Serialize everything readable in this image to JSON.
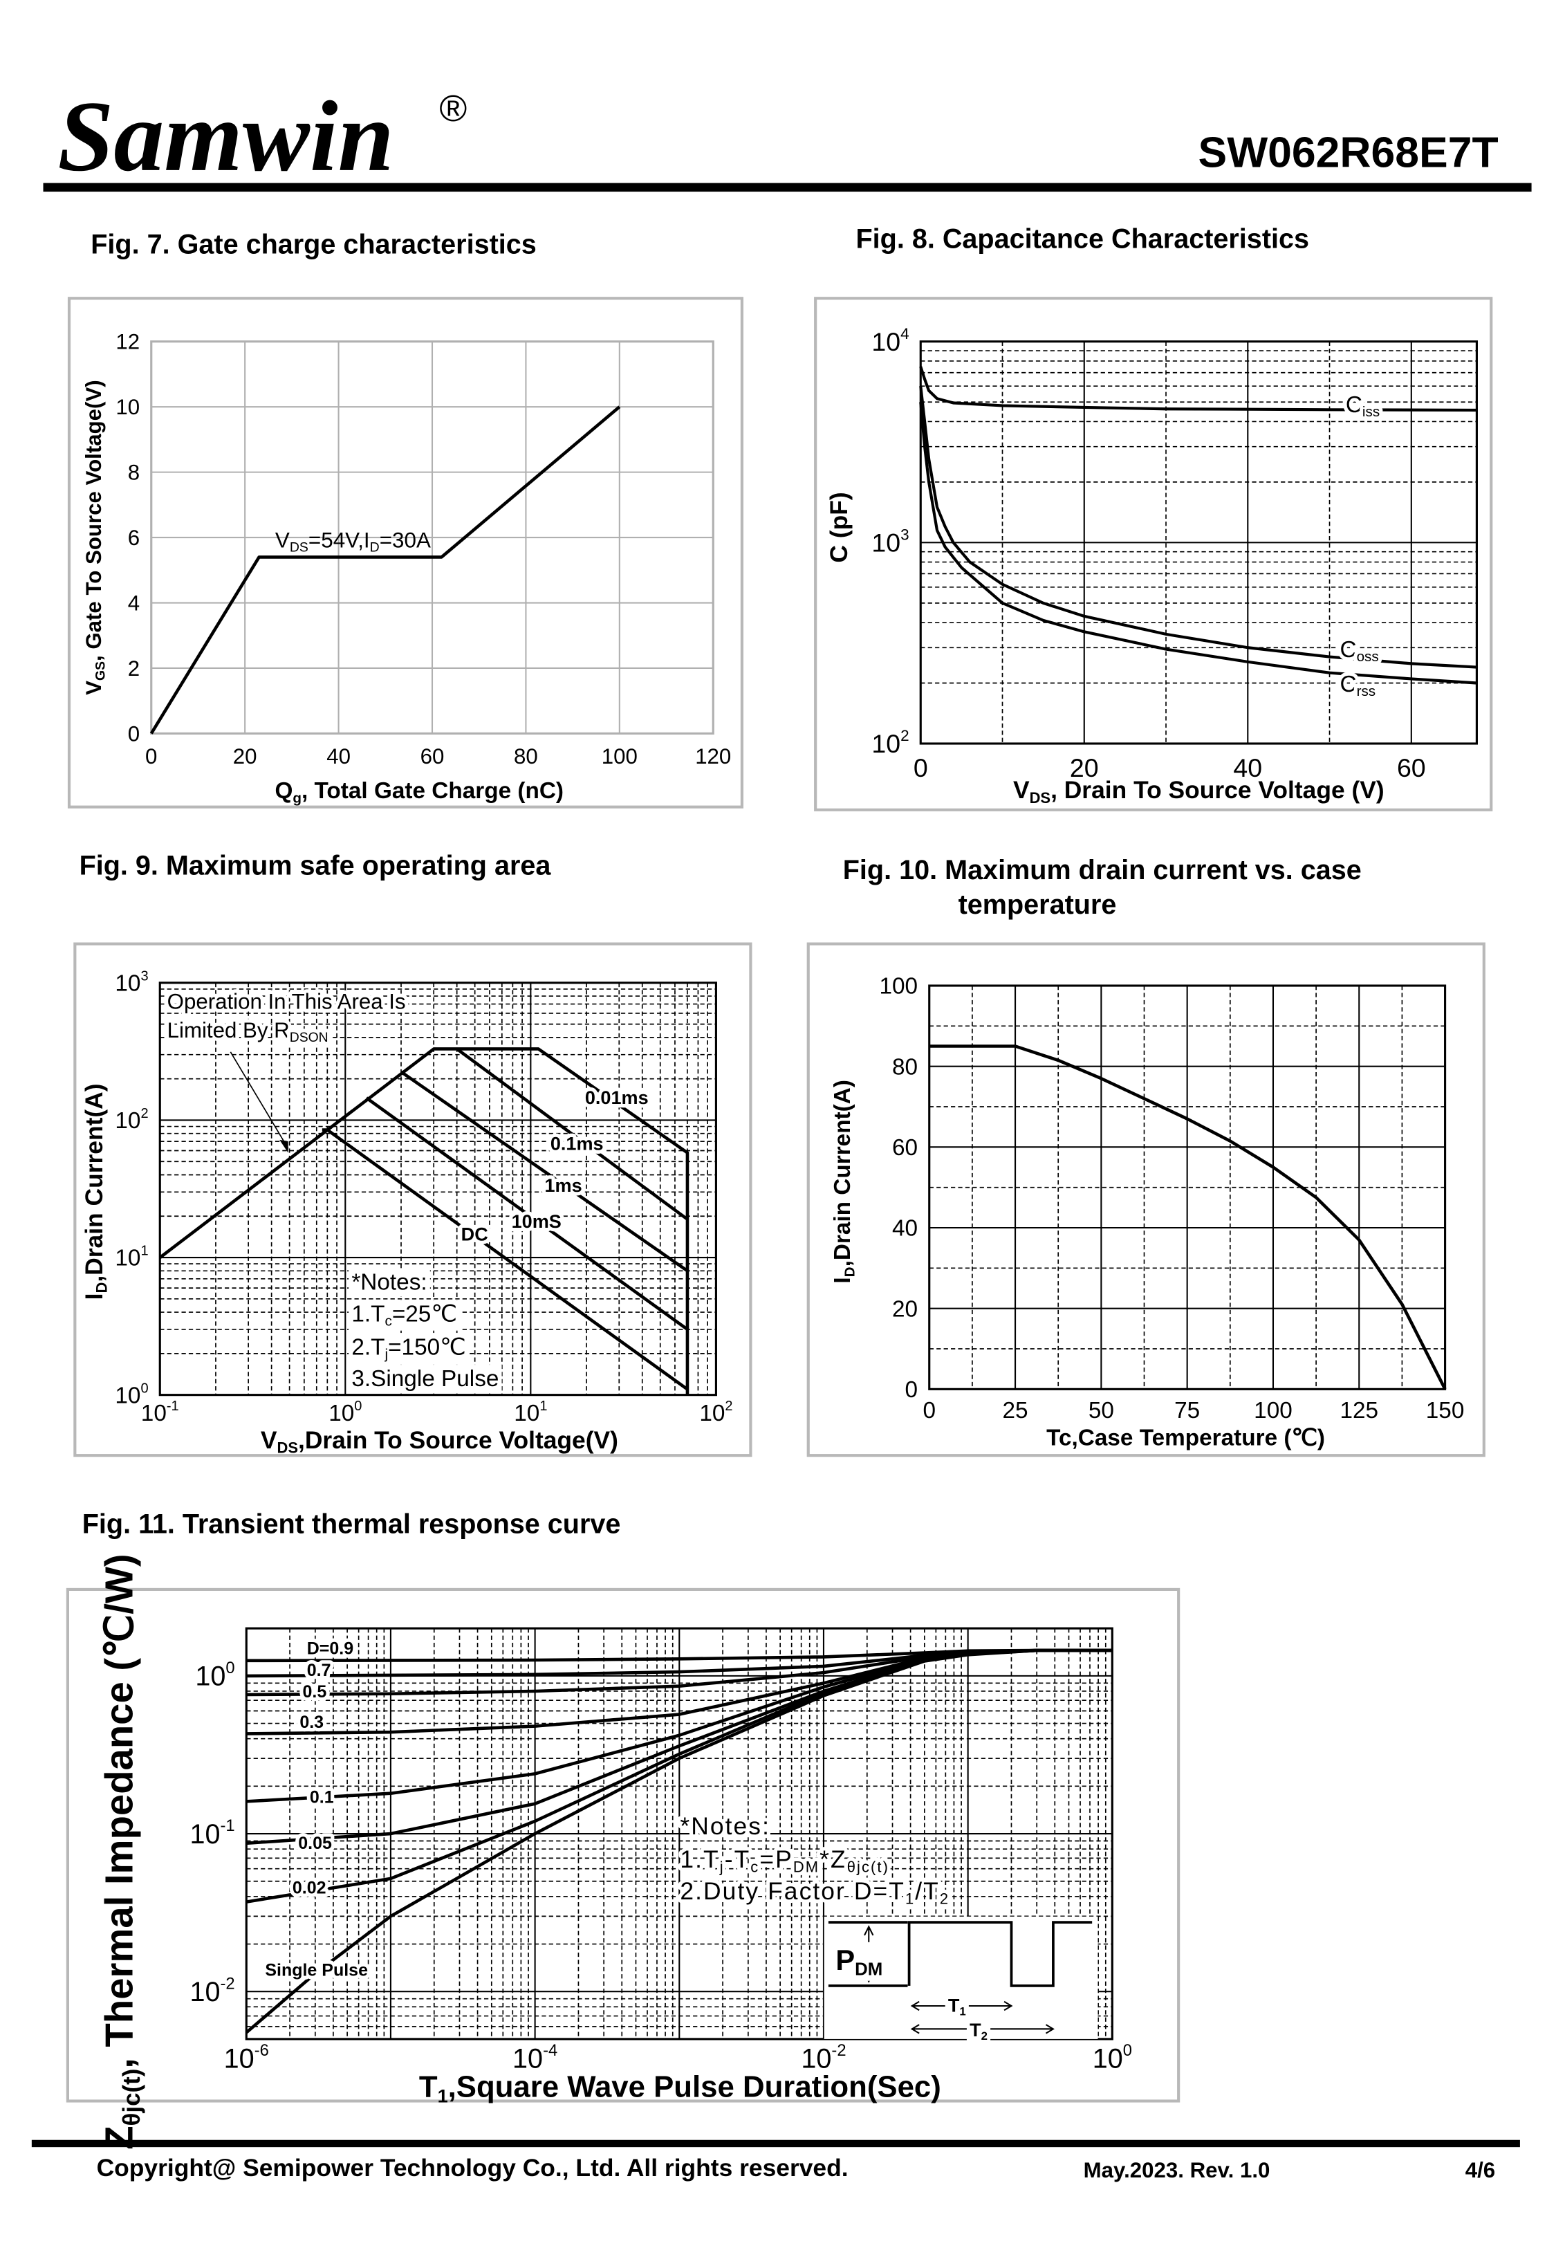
{
  "header": {
    "brand": "Samwin",
    "registered_mark": "®",
    "part_number": "SW062R68E7T"
  },
  "footer": {
    "copyright": "Copyright@ Semipower Technology Co., Ltd. All rights reserved.",
    "revision": "May.2023. Rev. 1.0",
    "page": "4/6"
  },
  "chart_data": [
    {
      "id": "fig7",
      "type": "line",
      "title": "Fig. 7. Gate charge characteristics",
      "xlabel": "Q_{g}, Total Gate Charge (nC)",
      "ylabel": "V_{GS},  Gate To  Source Voltage(V)",
      "xscale": "linear",
      "yscale": "linear",
      "xlim": [
        0,
        120
      ],
      "ylim": [
        0,
        12
      ],
      "grid": true,
      "xticks": [
        [
          "0",
          0
        ],
        [
          "20",
          20
        ],
        [
          "40",
          40
        ],
        [
          "60",
          60
        ],
        [
          "80",
          80
        ],
        [
          "100",
          100
        ],
        [
          "120",
          120
        ]
      ],
      "yticks": [
        [
          "0",
          0
        ],
        [
          "2",
          2
        ],
        [
          "4",
          4
        ],
        [
          "6",
          6
        ],
        [
          "8",
          8
        ],
        [
          "10",
          10
        ],
        [
          "12",
          12
        ]
      ],
      "annotations": [
        "V_{DS}=54V,I_{D}=30A"
      ],
      "series": [
        {
          "points": [
            [
              0,
              0
            ],
            [
              23,
              5.4
            ],
            [
              62,
              5.4
            ],
            [
              100,
              10
            ]
          ]
        }
      ]
    },
    {
      "id": "fig8",
      "type": "line",
      "title": "Fig. 8. Capacitance Characteristics",
      "xlabel": "V_{DS}, Drain To Source Voltage (V)",
      "ylabel": "C (pF)",
      "xscale": "linear",
      "yscale": "log",
      "xlim": [
        0,
        68
      ],
      "ylim": [
        100,
        10000
      ],
      "grid": true,
      "xticks": [
        [
          "0",
          0
        ],
        [
          "20",
          20
        ],
        [
          "40",
          40
        ],
        [
          "60",
          60
        ]
      ],
      "yticks": [
        [
          "10^2",
          100
        ],
        [
          "10^3",
          1000
        ],
        [
          "10^4",
          10000
        ]
      ],
      "annotations": [],
      "series": [
        {
          "name": "C_{iss}",
          "points": [
            [
              0,
              7500
            ],
            [
              0.5,
              6500
            ],
            [
              1,
              5700
            ],
            [
              2,
              5200
            ],
            [
              4,
              4950
            ],
            [
              10,
              4800
            ],
            [
              20,
              4700
            ],
            [
              30,
              4620
            ],
            [
              40,
              4600
            ],
            [
              50,
              4580
            ],
            [
              68,
              4560
            ]
          ]
        },
        {
          "name": "C_{oss}",
          "points": [
            [
              0,
              6000
            ],
            [
              0.5,
              4000
            ],
            [
              1,
              2600
            ],
            [
              2,
              1500
            ],
            [
              3,
              1200
            ],
            [
              4,
              1000
            ],
            [
              6,
              800
            ],
            [
              10,
              620
            ],
            [
              15,
              500
            ],
            [
              20,
              430
            ],
            [
              30,
              350
            ],
            [
              40,
              300
            ],
            [
              50,
              270
            ],
            [
              60,
              250
            ],
            [
              68,
              240
            ]
          ]
        },
        {
          "name": "C_{rss}",
          "points": [
            [
              0,
              5000
            ],
            [
              0.5,
              3000
            ],
            [
              1,
              2000
            ],
            [
              2,
              1150
            ],
            [
              3,
              950
            ],
            [
              5,
              750
            ],
            [
              10,
              500
            ],
            [
              15,
              410
            ],
            [
              20,
              360
            ],
            [
              30,
              295
            ],
            [
              40,
              255
            ],
            [
              50,
              225
            ],
            [
              60,
              210
            ],
            [
              68,
              200
            ]
          ]
        }
      ]
    },
    {
      "id": "fig9",
      "type": "line",
      "title": "Fig. 9. Maximum safe operating area",
      "xlabel": "V_{DS},Drain To Source Voltage(V)",
      "ylabel": "I_{D},Drain Current(A)",
      "xscale": "log",
      "yscale": "log",
      "xlim": [
        0.1,
        100
      ],
      "ylim": [
        1,
        1000
      ],
      "grid": true,
      "xticks": [
        [
          "10^-1",
          0.1
        ],
        [
          "10^0",
          1
        ],
        [
          "10^1",
          10
        ],
        [
          "10^2",
          100
        ]
      ],
      "yticks": [
        [
          "10^0",
          1
        ],
        [
          "10^1",
          10
        ],
        [
          "10^2",
          100
        ],
        [
          "10^3",
          1000
        ]
      ],
      "annotations": [
        "Operation In This Area Is",
        "Limited By R_{DSON}",
        "*Notes:",
        "1.T_{c}=25℃",
        "2.T_{j}=150℃",
        "3.Single Pulse"
      ],
      "series": [
        {
          "name": "0.01ms",
          "points": [
            [
              0.1,
              10
            ],
            [
              3,
              330
            ],
            [
              11,
              330
            ],
            [
              70,
              58
            ],
            [
              70,
              1
            ]
          ]
        },
        {
          "name": "0.1ms",
          "points": [
            [
              4,
              330
            ],
            [
              70,
              19
            ]
          ]
        },
        {
          "name": "1ms",
          "points": [
            [
              2,
              225
            ],
            [
              70,
              8
            ]
          ]
        },
        {
          "name": "10mS",
          "points": [
            [
              1.3,
              145
            ],
            [
              70,
              3
            ]
          ]
        },
        {
          "name": "DC",
          "points": [
            [
              0.75,
              85
            ],
            [
              0.8,
              85
            ],
            [
              70,
              1.1
            ]
          ]
        }
      ]
    },
    {
      "id": "fig10",
      "type": "line",
      "title": "Fig. 10. Maximum drain current vs. case",
      "title_line2": "temperature",
      "xlabel": "Tc,Case Temperature (℃)",
      "ylabel": "I_{D},Drain Current(A)",
      "xscale": "linear",
      "yscale": "linear",
      "xlim": [
        0,
        150
      ],
      "ylim": [
        0,
        100
      ],
      "grid": true,
      "xticks": [
        [
          "0",
          0
        ],
        [
          "25",
          25
        ],
        [
          "50",
          50
        ],
        [
          "75",
          75
        ],
        [
          "100",
          100
        ],
        [
          "125",
          125
        ],
        [
          "150",
          150
        ]
      ],
      "yticks": [
        [
          "0",
          0
        ],
        [
          "20",
          20
        ],
        [
          "40",
          40
        ],
        [
          "60",
          60
        ],
        [
          "80",
          80
        ],
        [
          "100",
          100
        ]
      ],
      "annotations": [],
      "series": [
        {
          "points": [
            [
              0,
              85
            ],
            [
              25,
              85
            ],
            [
              37.5,
              81.5
            ],
            [
              50,
              77
            ],
            [
              62.5,
              72
            ],
            [
              75,
              67
            ],
            [
              87.5,
              61.5
            ],
            [
              100,
              55
            ],
            [
              112.5,
              47.5
            ],
            [
              125,
              37
            ],
            [
              137.5,
              21
            ],
            [
              150,
              0
            ]
          ]
        }
      ]
    },
    {
      "id": "fig11",
      "type": "line",
      "title": "Fig. 11. Transient thermal response curve",
      "xlabel": "T_{1},Square Wave Pulse Duration(Sec)",
      "ylabel": "Z_{θjc(t)},  Thermal  Impedance (℃/W)",
      "xscale": "log",
      "yscale": "log",
      "xlim": [
        1e-06,
        1
      ],
      "ylim": [
        0.005,
        2
      ],
      "grid": true,
      "xticks": [
        [
          "10^-6",
          1e-06
        ],
        [
          "10^-4",
          0.0001
        ],
        [
          "10^-2",
          0.01
        ],
        [
          "10^0",
          1
        ]
      ],
      "yticks": [
        [
          "10^-2",
          0.01
        ],
        [
          "10^-1",
          0.1
        ],
        [
          "10^0",
          1
        ]
      ],
      "annotations": [
        "*Notes:",
        "1.T_{j}-T_{c}=P_{DM}*Z_{θjc(t)}",
        "2.Duty Factor D=T_{1}/T_{2}",
        "P_{DM}",
        "T_{1}",
        "T_{2}"
      ],
      "series": [
        {
          "name": "D=0.9",
          "points": [
            [
              1e-06,
              1.25
            ],
            [
              0.0001,
              1.26
            ],
            [
              0.001,
              1.28
            ],
            [
              0.01,
              1.32
            ],
            [
              0.05,
              1.4
            ],
            [
              0.1,
              1.44
            ],
            [
              0.3,
              1.45
            ],
            [
              1,
              1.45
            ]
          ]
        },
        {
          "name": "0.7",
          "points": [
            [
              1e-06,
              1.0
            ],
            [
              0.0001,
              1.02
            ],
            [
              0.001,
              1.06
            ],
            [
              0.01,
              1.15
            ],
            [
              0.05,
              1.35
            ],
            [
              0.1,
              1.42
            ],
            [
              0.3,
              1.45
            ],
            [
              1,
              1.45
            ]
          ]
        },
        {
          "name": "0.5",
          "points": [
            [
              1e-06,
              0.76
            ],
            [
              1e-05,
              0.77
            ],
            [
              0.0001,
              0.8
            ],
            [
              0.001,
              0.86
            ],
            [
              0.01,
              1.05
            ],
            [
              0.05,
              1.32
            ],
            [
              0.1,
              1.41
            ],
            [
              0.3,
              1.45
            ],
            [
              1,
              1.45
            ]
          ]
        },
        {
          "name": "0.3",
          "points": [
            [
              1e-06,
              0.43
            ],
            [
              1e-05,
              0.44
            ],
            [
              0.0001,
              0.48
            ],
            [
              0.001,
              0.57
            ],
            [
              0.01,
              0.9
            ],
            [
              0.05,
              1.3
            ],
            [
              0.1,
              1.4
            ],
            [
              0.3,
              1.45
            ],
            [
              1,
              1.45
            ]
          ]
        },
        {
          "name": "0.1",
          "points": [
            [
              1e-06,
              0.16
            ],
            [
              1e-05,
              0.18
            ],
            [
              0.0001,
              0.24
            ],
            [
              0.001,
              0.42
            ],
            [
              0.01,
              0.85
            ],
            [
              0.05,
              1.28
            ],
            [
              0.1,
              1.39
            ],
            [
              0.3,
              1.45
            ],
            [
              1,
              1.45
            ]
          ]
        },
        {
          "name": "0.05",
          "points": [
            [
              1e-06,
              0.087
            ],
            [
              1e-05,
              0.1
            ],
            [
              0.0001,
              0.155
            ],
            [
              0.001,
              0.36
            ],
            [
              0.01,
              0.8
            ],
            [
              0.05,
              1.26
            ],
            [
              0.1,
              1.38
            ],
            [
              0.3,
              1.45
            ],
            [
              1,
              1.45
            ]
          ]
        },
        {
          "name": "0.02",
          "points": [
            [
              1e-06,
              0.037
            ],
            [
              1e-05,
              0.052
            ],
            [
              0.0001,
              0.12
            ],
            [
              0.001,
              0.32
            ],
            [
              0.01,
              0.78
            ],
            [
              0.05,
              1.25
            ],
            [
              0.1,
              1.37
            ],
            [
              0.3,
              1.45
            ],
            [
              1,
              1.45
            ]
          ]
        },
        {
          "name": "Single Pulse",
          "points": [
            [
              1e-06,
              0.0055
            ],
            [
              3e-06,
              0.013
            ],
            [
              1e-05,
              0.03
            ],
            [
              0.0001,
              0.1
            ],
            [
              0.001,
              0.3
            ],
            [
              0.01,
              0.75
            ],
            [
              0.05,
              1.24
            ],
            [
              0.1,
              1.36
            ],
            [
              0.3,
              1.45
            ],
            [
              1,
              1.45
            ]
          ]
        }
      ]
    }
  ]
}
